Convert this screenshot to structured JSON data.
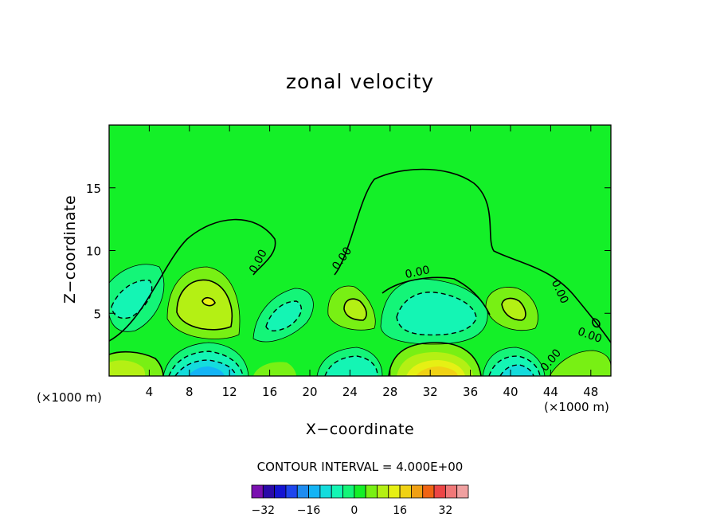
{
  "chart_data": {
    "type": "contour",
    "title": "zonal velocity",
    "xlabel": "X−coordinate",
    "ylabel": "Z−coordinate",
    "x_unit_left": "(×1000 m)",
    "x_unit_right": "(×1000 m)",
    "xlim": [
      0,
      50
    ],
    "ylim": [
      0,
      20
    ],
    "x_ticks": [
      4,
      8,
      12,
      16,
      20,
      24,
      28,
      32,
      36,
      40,
      44,
      48
    ],
    "y_ticks": [
      5,
      10,
      15
    ],
    "contour_interval_text": "CONTOUR INTERVAL = 4.000E+00",
    "contour_interval": 4,
    "contour_labels": [
      "0.00",
      "0.00",
      "0.00",
      "0.00",
      "0.00",
      "0.00"
    ],
    "colorbar": {
      "colors": [
        "#7a10b0",
        "#2a0aa8",
        "#1414d2",
        "#1e46ee",
        "#1e8cf0",
        "#14b4f5",
        "#14dcdc",
        "#14f5b4",
        "#14f578",
        "#14f028",
        "#78f014",
        "#b4f014",
        "#e6f014",
        "#f0d214",
        "#f0a014",
        "#f06414",
        "#ec4646",
        "#f07878",
        "#f0a0a0"
      ],
      "tick_labels": [
        "−32",
        "−16",
        "0",
        "16",
        "32"
      ],
      "tick_values": [
        -32,
        -16,
        0,
        16,
        32
      ]
    },
    "regions": [
      {
        "x": 10,
        "z": 5.5,
        "value": 8,
        "kind": "max"
      },
      {
        "x": 25,
        "z": 5.5,
        "value": 4,
        "kind": "max"
      },
      {
        "x": 40,
        "z": 5.0,
        "value": 4,
        "kind": "max"
      },
      {
        "x": 3,
        "z": 6.0,
        "value": -8,
        "kind": "min"
      },
      {
        "x": 17.5,
        "z": 5.0,
        "value": -4,
        "kind": "min"
      },
      {
        "x": 32.5,
        "z": 4.5,
        "value": -8,
        "kind": "min"
      },
      {
        "x": 10,
        "z": 0.5,
        "value": -16,
        "kind": "min"
      },
      {
        "x": 33,
        "z": 0.5,
        "value": 12,
        "kind": "max"
      },
      {
        "x": 41,
        "z": 0.5,
        "value": -12,
        "kind": "min"
      }
    ],
    "grid": false
  }
}
